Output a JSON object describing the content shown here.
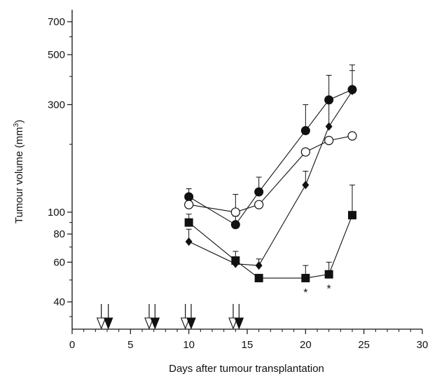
{
  "chart_data": {
    "type": "line",
    "title": "",
    "xlabel": "Days after tumour transplantation",
    "ylabel": "Tumour volume (mm",
    "ylabel_sup": "3",
    "ylabel_end": ")",
    "xlim": [
      0,
      30
    ],
    "ylim": [
      30,
      800
    ],
    "yscale": "log",
    "grid": false,
    "legend": "none",
    "x_ticks": [
      0,
      5,
      10,
      15,
      20,
      25,
      30
    ],
    "x_tick_labels": [
      "0",
      "5",
      "10",
      "15",
      "20",
      "25",
      "30"
    ],
    "y_ticks": [
      40,
      60,
      80,
      100,
      300,
      500,
      700
    ],
    "y_tick_labels": [
      "40",
      "60",
      "80",
      "100",
      "300",
      "500",
      "700"
    ],
    "series": [
      {
        "marker": "filled-circle",
        "x": [
          10,
          14,
          16,
          20,
          22,
          24
        ],
        "y": [
          117,
          88,
          123,
          230,
          315,
          350
        ],
        "err": [
          10,
          8,
          20,
          70,
          90,
          100
        ]
      },
      {
        "marker": "open-circle",
        "x": [
          10,
          14,
          16,
          20,
          22,
          24
        ],
        "y": [
          108,
          100,
          108,
          185,
          208,
          218
        ],
        "err": [
          0,
          20,
          0,
          0,
          0,
          0
        ]
      },
      {
        "marker": "filled-diamond",
        "x": [
          10,
          14,
          16,
          20,
          22,
          24
        ],
        "y": [
          74,
          59,
          58,
          132,
          240,
          345
        ],
        "err": [
          10,
          0,
          4,
          20,
          80,
          80
        ]
      },
      {
        "marker": "filled-square",
        "x": [
          10,
          14,
          16,
          20,
          22,
          24
        ],
        "y": [
          90,
          61,
          51,
          51,
          53,
          97
        ],
        "err": [
          8,
          6,
          0,
          7,
          7,
          35
        ]
      }
    ],
    "significance": [
      {
        "x": 20,
        "label": "*"
      },
      {
        "x": 22,
        "label": "*"
      }
    ],
    "treatment_arrows": [
      {
        "x": 2.5,
        "style": "open"
      },
      {
        "x": 3.1,
        "style": "filled"
      },
      {
        "x": 6.6,
        "style": "open"
      },
      {
        "x": 7.1,
        "style": "filled"
      },
      {
        "x": 9.7,
        "style": "open"
      },
      {
        "x": 10.2,
        "style": "filled"
      },
      {
        "x": 13.8,
        "style": "open"
      },
      {
        "x": 14.3,
        "style": "filled"
      }
    ],
    "colors": {
      "ink": "#111111",
      "background": "#ffffff",
      "open_fill": "#ffffff"
    }
  }
}
